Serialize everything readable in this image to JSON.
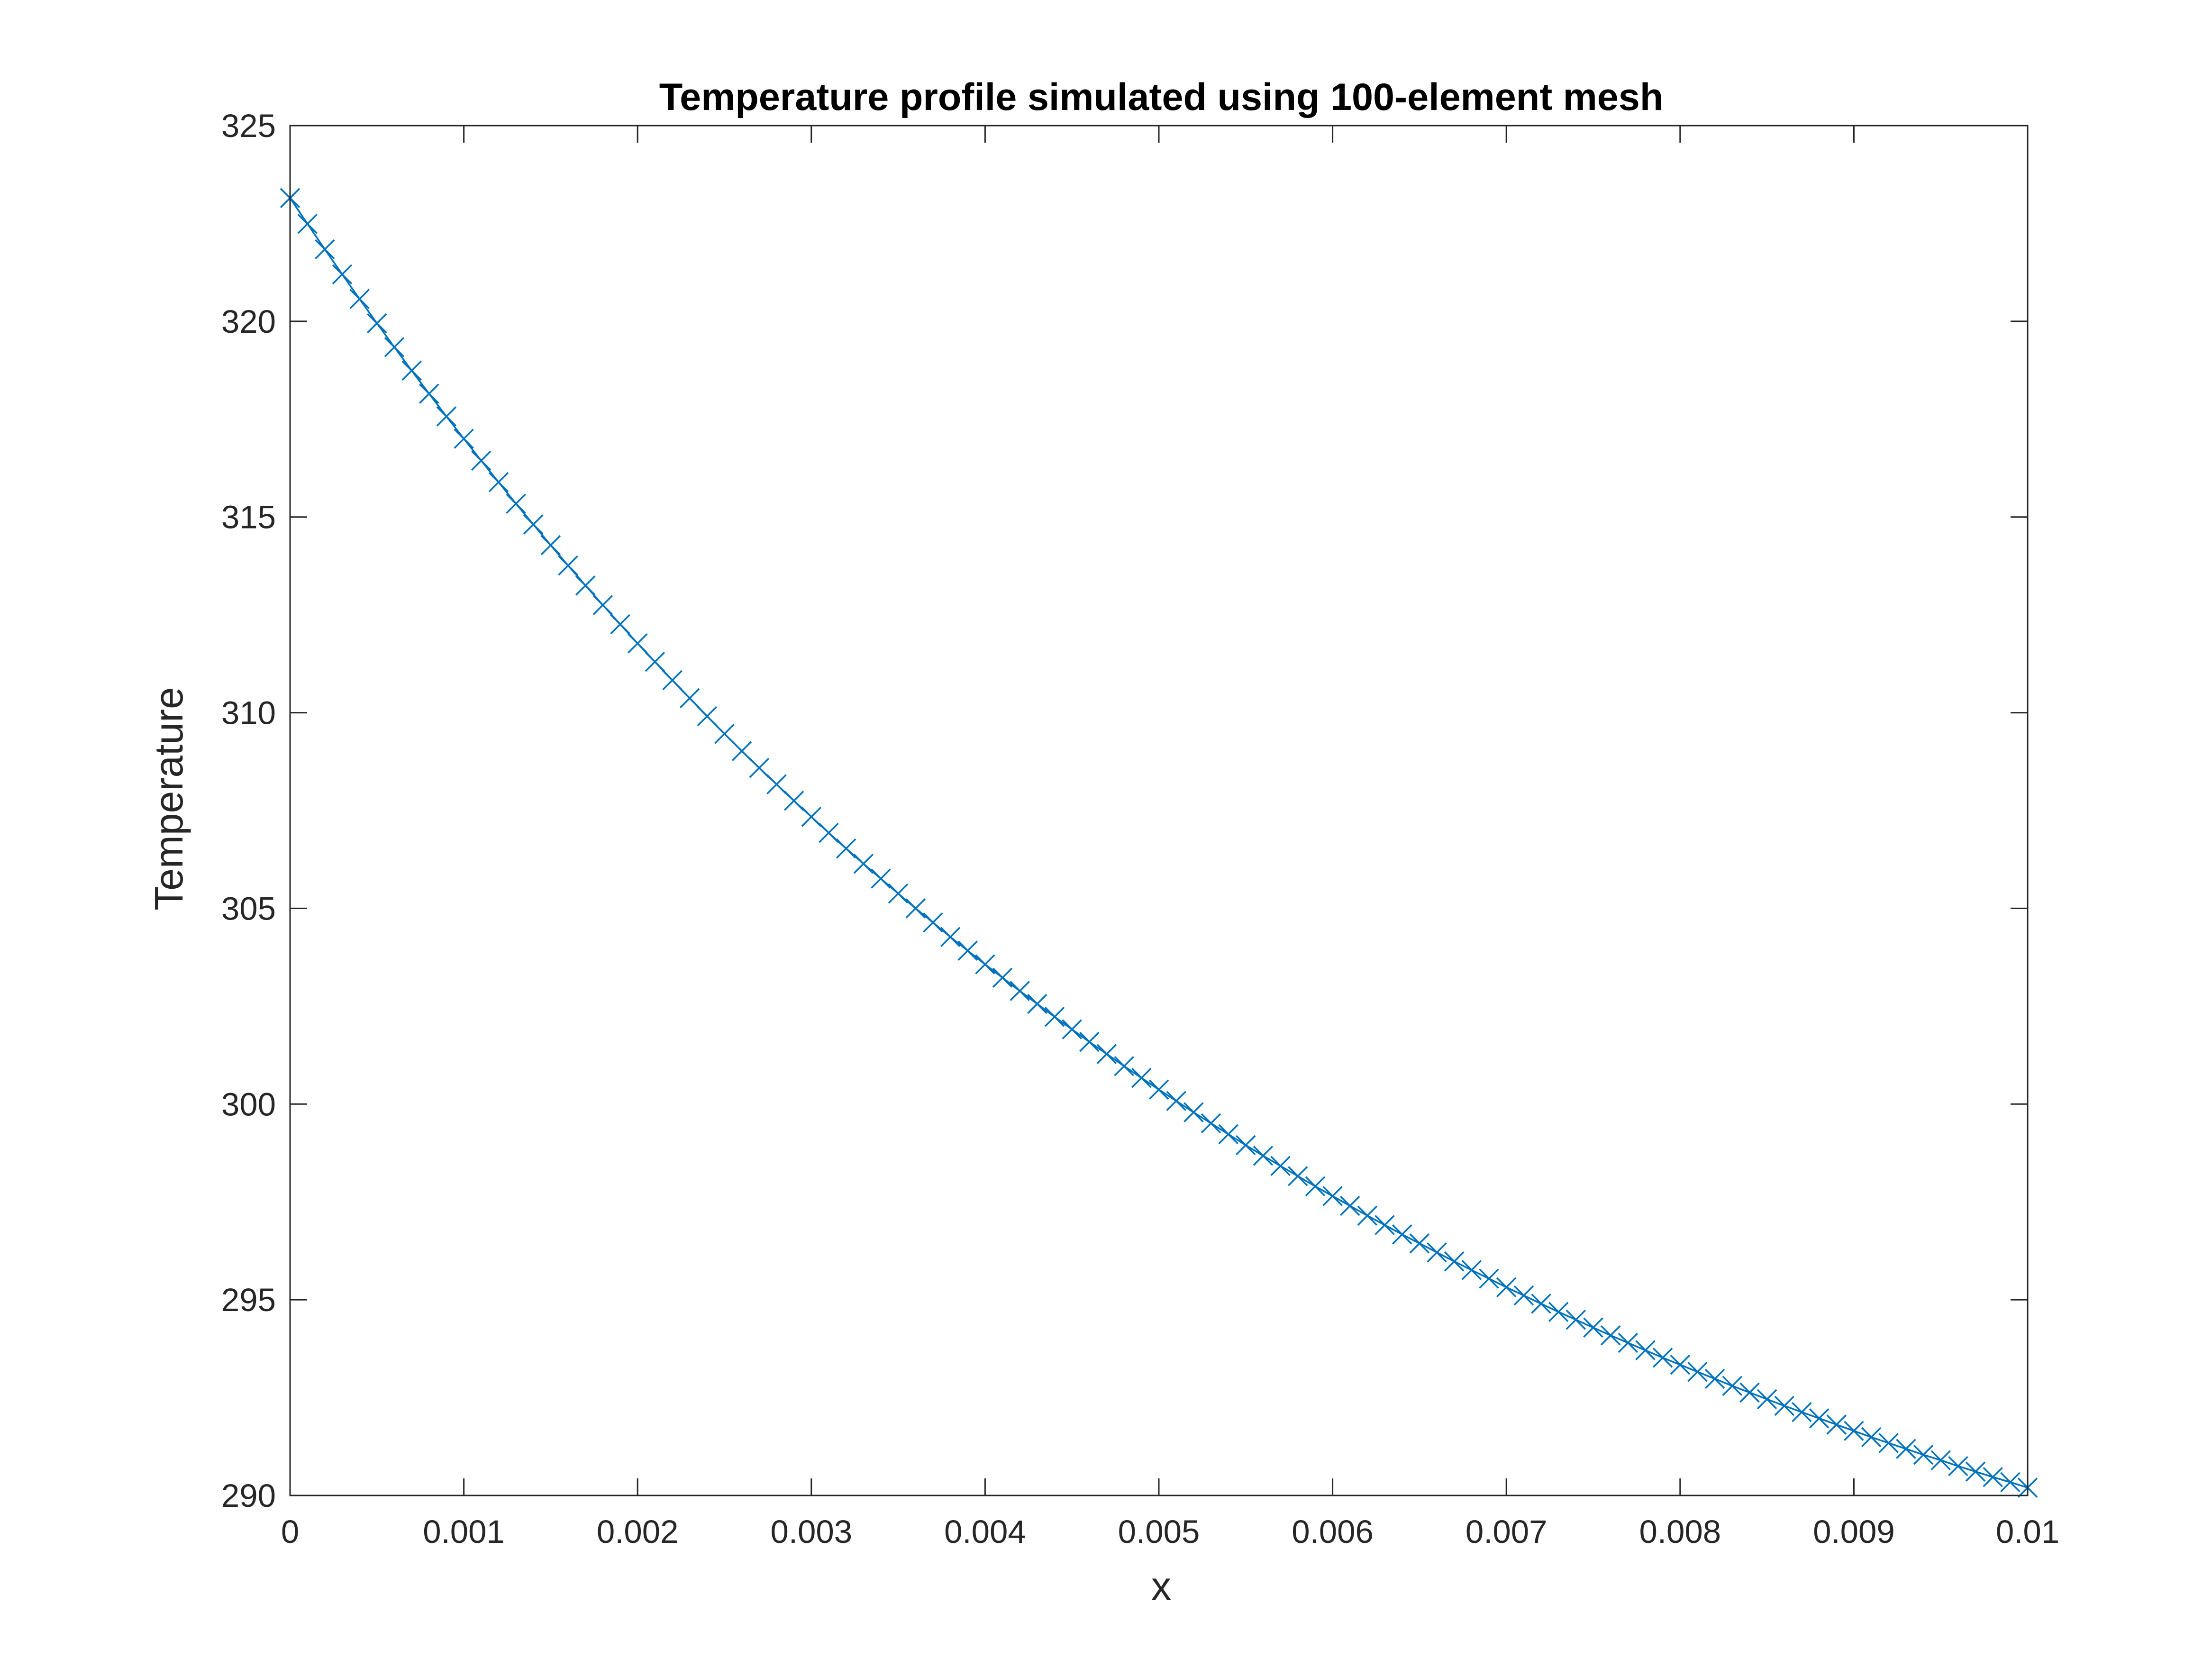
{
  "chart_data": {
    "type": "line",
    "title": "Temperature profile simulated using 100-element mesh",
    "xlabel": "x",
    "ylabel": "Temperature",
    "xlim": [
      0,
      0.01
    ],
    "ylim": [
      290,
      325
    ],
    "x_ticks": [
      "0",
      "0.001",
      "0.002",
      "0.003",
      "0.004",
      "0.005",
      "0.006",
      "0.007",
      "0.008",
      "0.009",
      "0.01"
    ],
    "x_tick_values": [
      0,
      0.001,
      0.002,
      0.003,
      0.004,
      0.005,
      0.006,
      0.007,
      0.008,
      0.009,
      0.01
    ],
    "y_ticks": [
      "290",
      "295",
      "300",
      "305",
      "310",
      "315",
      "320",
      "325"
    ],
    "y_tick_values": [
      290,
      295,
      300,
      305,
      310,
      315,
      320,
      325
    ],
    "grid": false,
    "box": true,
    "series": [
      {
        "marker": "x",
        "color": "#0072BD",
        "x": [
          0,
          0.0001,
          0.0002,
          0.0003,
          0.0004,
          0.0005,
          0.0006,
          0.0007,
          0.0008,
          0.0009,
          0.001,
          0.0011,
          0.0012,
          0.0013,
          0.0014,
          0.0015,
          0.0016,
          0.0017,
          0.0018,
          0.0019,
          0.002,
          0.0021,
          0.0022,
          0.0023,
          0.0024,
          0.0025,
          0.0026,
          0.0027,
          0.0028,
          0.0029,
          0.003,
          0.0031,
          0.0032,
          0.0033,
          0.0034,
          0.0035,
          0.0036,
          0.0037,
          0.0038,
          0.0039,
          0.004,
          0.0041,
          0.0042,
          0.0043,
          0.0044,
          0.0045,
          0.0046,
          0.0047,
          0.0048,
          0.0049,
          0.005,
          0.0051,
          0.0052,
          0.0053,
          0.0054,
          0.0055,
          0.0056,
          0.0057,
          0.0058,
          0.0059,
          0.006,
          0.0061,
          0.0062,
          0.0063,
          0.0064,
          0.0065,
          0.0066,
          0.0067,
          0.0068,
          0.0069,
          0.007,
          0.0071,
          0.0072,
          0.0073,
          0.0074,
          0.0075,
          0.0076,
          0.0077,
          0.0078,
          0.0079,
          0.008,
          0.0081,
          0.0082,
          0.0083,
          0.0084,
          0.0085,
          0.0086,
          0.0087,
          0.0088,
          0.0089,
          0.009,
          0.0091,
          0.0092,
          0.0093,
          0.0094,
          0.0095,
          0.0096,
          0.0097,
          0.0098,
          0.0099,
          0.01
        ],
        "y": [
          323.15,
          322.49,
          321.84,
          321.2,
          320.57,
          319.95,
          319.34,
          318.74,
          318.15,
          317.57,
          317.0,
          316.44,
          315.89,
          315.34,
          314.81,
          314.28,
          313.76,
          313.25,
          312.75,
          312.26,
          311.77,
          311.3,
          310.83,
          310.37,
          309.91,
          309.46,
          309.02,
          308.59,
          308.17,
          307.75,
          307.34,
          306.93,
          306.53,
          306.14,
          305.76,
          305.38,
          305.0,
          304.64,
          304.27,
          303.92,
          303.57,
          303.23,
          302.89,
          302.56,
          302.23,
          301.91,
          301.59,
          301.28,
          300.97,
          300.67,
          300.37,
          300.08,
          299.79,
          299.51,
          299.23,
          298.95,
          298.68,
          298.42,
          298.16,
          297.9,
          297.65,
          297.4,
          297.15,
          296.91,
          296.67,
          296.44,
          296.21,
          295.98,
          295.76,
          295.54,
          295.32,
          295.11,
          294.9,
          294.69,
          294.49,
          294.29,
          294.09,
          293.9,
          293.71,
          293.52,
          293.34,
          293.16,
          292.98,
          292.8,
          292.63,
          292.46,
          292.29,
          292.13,
          291.97,
          291.81,
          291.65,
          291.49,
          291.34,
          291.19,
          291.04,
          290.9,
          290.75,
          290.61,
          290.47,
          290.34,
          290.2
        ]
      }
    ]
  }
}
